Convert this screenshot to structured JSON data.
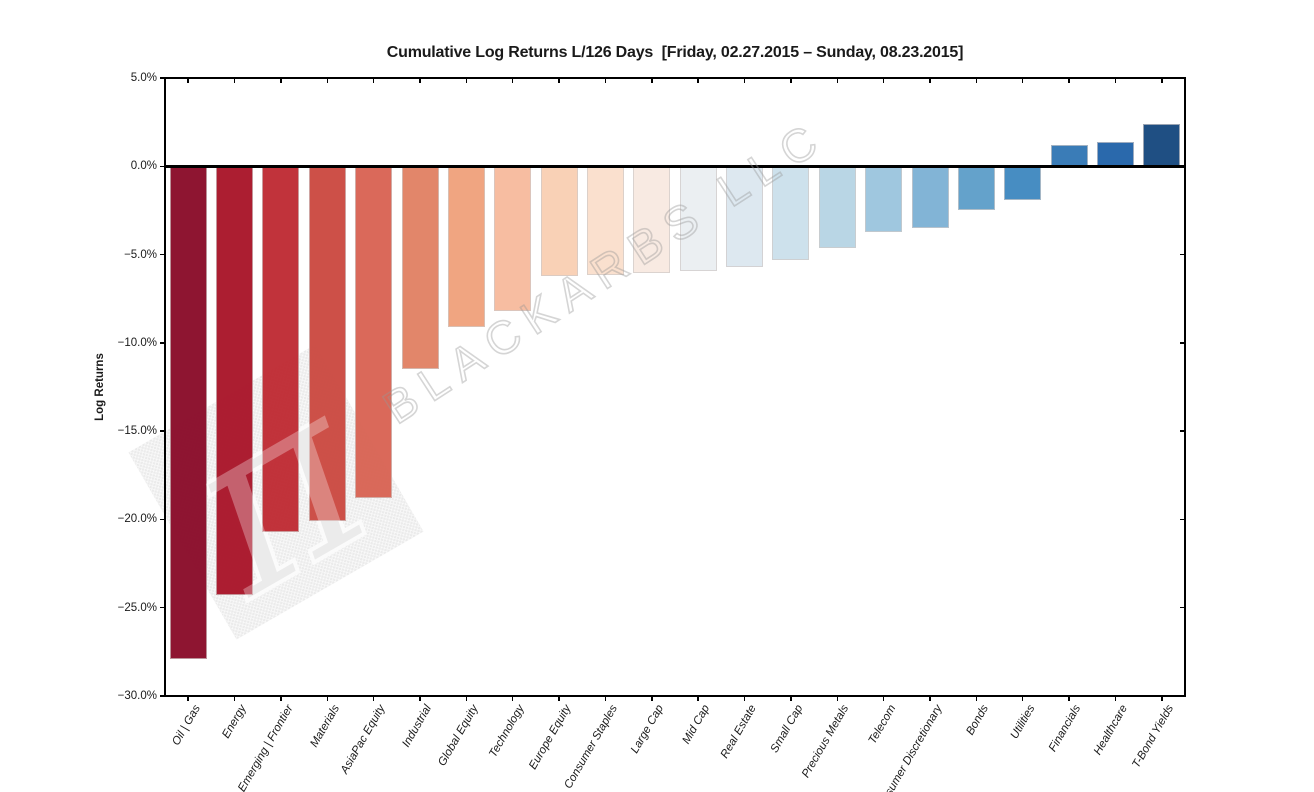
{
  "watermark": {
    "text": "BLACKARBS LLC",
    "logo_symbol": "π"
  },
  "chart_data": {
    "type": "bar",
    "title": "Cumulative Log Returns L/126 Days  [Friday, 02.27.2015 – Sunday, 08.23.2015]",
    "xlabel": "",
    "ylabel": "Log Returns",
    "ylim": [
      -30,
      5
    ],
    "grid": false,
    "legend": null,
    "zero_line": true,
    "axis_color": "#000000",
    "yticks": [
      5,
      0,
      -5,
      -10,
      -15,
      -20,
      -25,
      -30
    ],
    "ytick_labels": [
      "5.0%",
      "0.0%",
      "−5.0%",
      "−10.0%",
      "−15.0%",
      "−20.0%",
      "−25.0%",
      "−30.0%"
    ],
    "categories": [
      "Oil | Gas",
      "Energy",
      "Emerging | Frontier",
      "Materials",
      "AsiaPac Equity",
      "Industrial",
      "Global Equity",
      "Technology",
      "Europe Equity",
      "Consumer Staples",
      "Large Cap",
      "Mid Cap",
      "Real Estate",
      "Small Cap",
      "Precious Metals",
      "Telecom",
      "Consumer Discretionary",
      "Bonds",
      "Utilities",
      "Financials",
      "Healthcare",
      "T-Bond Yields"
    ],
    "values": [
      -27.9,
      -24.3,
      -20.7,
      -20.1,
      -18.8,
      -11.5,
      -9.1,
      -8.2,
      -6.2,
      -6.15,
      -6.05,
      -5.95,
      -5.7,
      -5.3,
      -4.6,
      -3.7,
      -3.5,
      -2.5,
      -1.9,
      1.2,
      1.35,
      2.4
    ],
    "bar_colors": [
      "#8b0e2b",
      "#aa172b",
      "#c02d35",
      "#cc4b43",
      "#d96555",
      "#e28366",
      "#f0a37d",
      "#f7bb9e",
      "#f9d0b4",
      "#fae0cd",
      "#f8eae2",
      "#ebeff2",
      "#dce8f0",
      "#cce1ec",
      "#b7d5e5",
      "#9cc6de",
      "#7eb2d5",
      "#609fca",
      "#428ac1",
      "#3478b5",
      "#2465aa",
      "#184a80"
    ]
  }
}
